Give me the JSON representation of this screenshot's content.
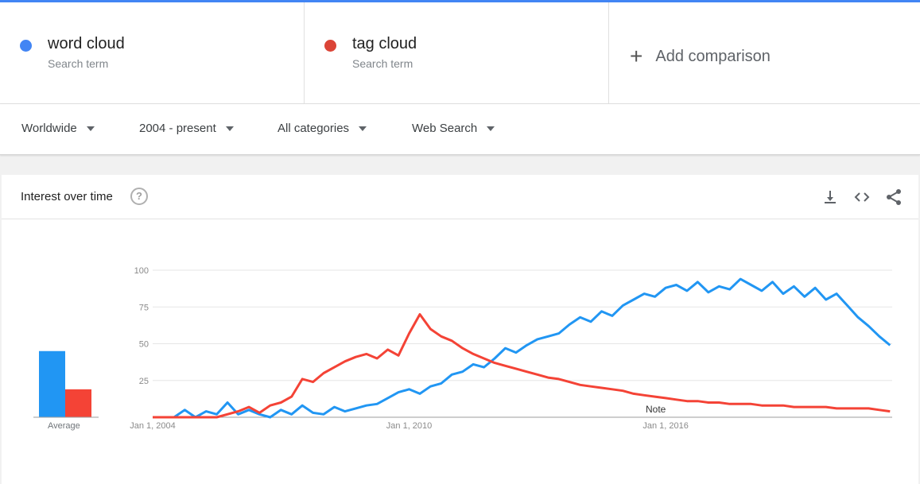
{
  "terms": [
    {
      "name": "word cloud",
      "sub": "Search term",
      "color": "#4285f4"
    },
    {
      "name": "tag cloud",
      "sub": "Search term",
      "color": "#db4437"
    }
  ],
  "add_comparison": "Add comparison",
  "filters": {
    "region": "Worldwide",
    "time": "2004 - present",
    "category": "All categories",
    "search_type": "Web Search"
  },
  "card": {
    "title": "Interest over time",
    "help_glyph": "?",
    "icons": [
      "download-icon",
      "embed-icon",
      "share-icon"
    ]
  },
  "chart_data": {
    "type": "line",
    "y_ticks": [
      "100",
      "75",
      "50",
      "25"
    ],
    "ylim": [
      0,
      100
    ],
    "x_ticks": [
      "Jan 1, 2004",
      "Jan 1, 2010",
      "Jan 1, 2016"
    ],
    "note": "Note",
    "average_label": "Average",
    "averages": [
      {
        "name": "word cloud",
        "value": 45,
        "color": "#2196f3"
      },
      {
        "name": "tag cloud",
        "value": 19,
        "color": "#f44336"
      }
    ],
    "series": [
      {
        "name": "word cloud",
        "color": "#2196f3",
        "points": [
          [
            2004.0,
            0
          ],
          [
            2004.5,
            0
          ],
          [
            2004.75,
            5
          ],
          [
            2005.0,
            0
          ],
          [
            2005.25,
            4
          ],
          [
            2005.5,
            2
          ],
          [
            2005.75,
            10
          ],
          [
            2006.0,
            2
          ],
          [
            2006.25,
            5
          ],
          [
            2006.5,
            2
          ],
          [
            2006.75,
            0
          ],
          [
            2007.0,
            5
          ],
          [
            2007.25,
            2
          ],
          [
            2007.5,
            8
          ],
          [
            2007.75,
            3
          ],
          [
            2008.0,
            2
          ],
          [
            2008.25,
            7
          ],
          [
            2008.5,
            4
          ],
          [
            2008.75,
            6
          ],
          [
            2009.0,
            8
          ],
          [
            2009.25,
            9
          ],
          [
            2009.5,
            13
          ],
          [
            2009.75,
            17
          ],
          [
            2010.0,
            19
          ],
          [
            2010.25,
            16
          ],
          [
            2010.5,
            21
          ],
          [
            2010.75,
            23
          ],
          [
            2011.0,
            29
          ],
          [
            2011.25,
            31
          ],
          [
            2011.5,
            36
          ],
          [
            2011.75,
            34
          ],
          [
            2012.0,
            40
          ],
          [
            2012.25,
            47
          ],
          [
            2012.5,
            44
          ],
          [
            2012.75,
            49
          ],
          [
            2013.0,
            53
          ],
          [
            2013.25,
            55
          ],
          [
            2013.5,
            57
          ],
          [
            2013.75,
            63
          ],
          [
            2014.0,
            68
          ],
          [
            2014.25,
            65
          ],
          [
            2014.5,
            72
          ],
          [
            2014.75,
            69
          ],
          [
            2015.0,
            76
          ],
          [
            2015.25,
            80
          ],
          [
            2015.5,
            84
          ],
          [
            2015.75,
            82
          ],
          [
            2016.0,
            88
          ],
          [
            2016.25,
            90
          ],
          [
            2016.5,
            86
          ],
          [
            2016.75,
            92
          ],
          [
            2017.0,
            85
          ],
          [
            2017.25,
            89
          ],
          [
            2017.5,
            87
          ],
          [
            2017.75,
            94
          ],
          [
            2018.0,
            90
          ],
          [
            2018.25,
            86
          ],
          [
            2018.5,
            92
          ],
          [
            2018.75,
            84
          ],
          [
            2019.0,
            89
          ],
          [
            2019.25,
            82
          ],
          [
            2019.5,
            88
          ],
          [
            2019.75,
            80
          ],
          [
            2020.0,
            84
          ],
          [
            2020.25,
            76
          ],
          [
            2020.5,
            68
          ],
          [
            2020.75,
            62
          ],
          [
            2021.0,
            55
          ],
          [
            2021.25,
            49
          ]
        ]
      },
      {
        "name": "tag cloud",
        "color": "#f44336",
        "points": [
          [
            2004.0,
            0
          ],
          [
            2004.75,
            0
          ],
          [
            2005.5,
            0
          ],
          [
            2006.0,
            4
          ],
          [
            2006.25,
            7
          ],
          [
            2006.5,
            3
          ],
          [
            2006.75,
            8
          ],
          [
            2007.0,
            10
          ],
          [
            2007.25,
            14
          ],
          [
            2007.5,
            26
          ],
          [
            2007.75,
            24
          ],
          [
            2008.0,
            30
          ],
          [
            2008.25,
            34
          ],
          [
            2008.5,
            38
          ],
          [
            2008.75,
            41
          ],
          [
            2009.0,
            43
          ],
          [
            2009.25,
            40
          ],
          [
            2009.5,
            46
          ],
          [
            2009.75,
            42
          ],
          [
            2010.0,
            57
          ],
          [
            2010.25,
            70
          ],
          [
            2010.5,
            60
          ],
          [
            2010.75,
            55
          ],
          [
            2011.0,
            52
          ],
          [
            2011.25,
            47
          ],
          [
            2011.5,
            43
          ],
          [
            2011.75,
            40
          ],
          [
            2012.0,
            37
          ],
          [
            2012.25,
            35
          ],
          [
            2012.5,
            33
          ],
          [
            2012.75,
            31
          ],
          [
            2013.0,
            29
          ],
          [
            2013.25,
            27
          ],
          [
            2013.5,
            26
          ],
          [
            2013.75,
            24
          ],
          [
            2014.0,
            22
          ],
          [
            2014.25,
            21
          ],
          [
            2014.5,
            20
          ],
          [
            2014.75,
            19
          ],
          [
            2015.0,
            18
          ],
          [
            2015.25,
            16
          ],
          [
            2015.5,
            15
          ],
          [
            2015.75,
            14
          ],
          [
            2016.0,
            13
          ],
          [
            2016.25,
            12
          ],
          [
            2016.5,
            11
          ],
          [
            2016.75,
            11
          ],
          [
            2017.0,
            10
          ],
          [
            2017.25,
            10
          ],
          [
            2017.5,
            9
          ],
          [
            2017.75,
            9
          ],
          [
            2018.0,
            9
          ],
          [
            2018.25,
            8
          ],
          [
            2018.5,
            8
          ],
          [
            2018.75,
            8
          ],
          [
            2019.0,
            7
          ],
          [
            2019.25,
            7
          ],
          [
            2019.5,
            7
          ],
          [
            2019.75,
            7
          ],
          [
            2020.0,
            6
          ],
          [
            2020.25,
            6
          ],
          [
            2020.5,
            6
          ],
          [
            2020.75,
            6
          ],
          [
            2021.0,
            5
          ],
          [
            2021.25,
            4
          ]
        ]
      }
    ]
  }
}
